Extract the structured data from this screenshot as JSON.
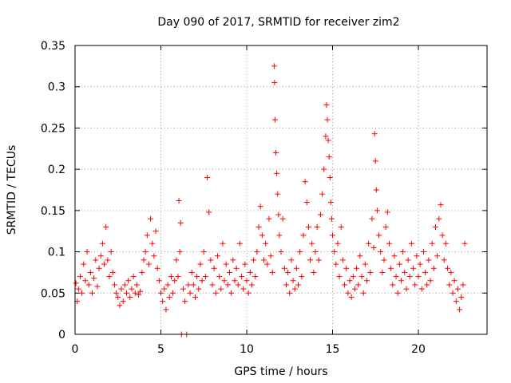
{
  "chart_data": {
    "type": "scatter",
    "title": "Day 090 of 2017, SRMTID for receiver zim2",
    "xlabel": "GPS time / hours",
    "ylabel": "SRMTID / TECUs",
    "xlim": [
      0,
      24
    ],
    "ylim": [
      0,
      0.35
    ],
    "xticks": [
      0,
      5,
      10,
      15,
      20
    ],
    "xtick_labels": [
      "0",
      "5",
      "10",
      "15",
      "20"
    ],
    "yticks": [
      0,
      0.05,
      0.1,
      0.15,
      0.2,
      0.25,
      0.3,
      0.35
    ],
    "ytick_labels": [
      "0",
      "0.05",
      "0.1",
      "0.15",
      "0.2",
      "0.25",
      "0.3",
      "0.35"
    ],
    "grid": true,
    "marker": "+",
    "color": "#ff0000",
    "series": [
      {
        "name": "SRMTID",
        "points": [
          [
            0.05,
            0.062
          ],
          [
            0.12,
            0.04
          ],
          [
            0.2,
            0.055
          ],
          [
            0.3,
            0.07
          ],
          [
            0.4,
            0.05
          ],
          [
            0.5,
            0.085
          ],
          [
            0.6,
            0.065
          ],
          [
            0.7,
            0.1
          ],
          [
            0.8,
            0.06
          ],
          [
            0.9,
            0.075
          ],
          [
            1.0,
            0.05
          ],
          [
            1.1,
            0.068
          ],
          [
            1.2,
            0.09
          ],
          [
            1.3,
            0.058
          ],
          [
            1.4,
            0.08
          ],
          [
            1.5,
            0.095
          ],
          [
            1.6,
            0.11
          ],
          [
            1.7,
            0.085
          ],
          [
            1.8,
            0.13
          ],
          [
            1.9,
            0.09
          ],
          [
            2.0,
            0.07
          ],
          [
            2.1,
            0.1
          ],
          [
            2.2,
            0.075
          ],
          [
            2.3,
            0.06
          ],
          [
            2.4,
            0.05
          ],
          [
            2.5,
            0.045
          ],
          [
            2.6,
            0.035
          ],
          [
            2.7,
            0.055
          ],
          [
            2.8,
            0.04
          ],
          [
            2.9,
            0.06
          ],
          [
            3.0,
            0.05
          ],
          [
            3.1,
            0.065
          ],
          [
            3.2,
            0.045
          ],
          [
            3.3,
            0.055
          ],
          [
            3.4,
            0.07
          ],
          [
            3.5,
            0.05
          ],
          [
            3.6,
            0.06
          ],
          [
            3.7,
            0.048
          ],
          [
            3.8,
            0.052
          ],
          [
            3.9,
            0.075
          ],
          [
            4.0,
            0.09
          ],
          [
            4.1,
            0.1
          ],
          [
            4.2,
            0.12
          ],
          [
            4.3,
            0.085
          ],
          [
            4.4,
            0.14
          ],
          [
            4.5,
            0.11
          ],
          [
            4.6,
            0.095
          ],
          [
            4.7,
            0.125
          ],
          [
            4.8,
            0.08
          ],
          [
            4.9,
            0.065
          ],
          [
            5.0,
            0.05
          ],
          [
            5.1,
            0.04
          ],
          [
            5.2,
            0.055
          ],
          [
            5.3,
            0.03
          ],
          [
            5.4,
            0.06
          ],
          [
            5.5,
            0.045
          ],
          [
            5.6,
            0.07
          ],
          [
            5.7,
            0.05
          ],
          [
            5.8,
            0.065
          ],
          [
            5.9,
            0.09
          ],
          [
            6.0,
            0.07
          ],
          [
            6.05,
            0.162
          ],
          [
            6.1,
            0.1
          ],
          [
            6.15,
            0.135
          ],
          [
            6.2,
            0.0
          ],
          [
            6.3,
            0.055
          ],
          [
            6.4,
            0.04
          ],
          [
            6.5,
            0.0
          ],
          [
            6.6,
            0.06
          ],
          [
            6.7,
            0.05
          ],
          [
            6.8,
            0.075
          ],
          [
            6.9,
            0.06
          ],
          [
            7.0,
            0.045
          ],
          [
            7.1,
            0.07
          ],
          [
            7.2,
            0.055
          ],
          [
            7.3,
            0.085
          ],
          [
            7.4,
            0.065
          ],
          [
            7.5,
            0.1
          ],
          [
            7.6,
            0.07
          ],
          [
            7.7,
            0.19
          ],
          [
            7.8,
            0.148
          ],
          [
            7.9,
            0.09
          ],
          [
            8.0,
            0.06
          ],
          [
            8.1,
            0.08
          ],
          [
            8.2,
            0.05
          ],
          [
            8.3,
            0.095
          ],
          [
            8.4,
            0.07
          ],
          [
            8.5,
            0.055
          ],
          [
            8.6,
            0.11
          ],
          [
            8.7,
            0.065
          ],
          [
            8.8,
            0.085
          ],
          [
            8.9,
            0.06
          ],
          [
            9.0,
            0.075
          ],
          [
            9.1,
            0.05
          ],
          [
            9.2,
            0.09
          ],
          [
            9.3,
            0.065
          ],
          [
            9.4,
            0.08
          ],
          [
            9.5,
            0.06
          ],
          [
            9.6,
            0.11
          ],
          [
            9.7,
            0.07
          ],
          [
            9.8,
            0.055
          ],
          [
            9.9,
            0.085
          ],
          [
            10.0,
            0.065
          ],
          [
            10.1,
            0.05
          ],
          [
            10.2,
            0.075
          ],
          [
            10.3,
            0.06
          ],
          [
            10.4,
            0.09
          ],
          [
            10.5,
            0.07
          ],
          [
            10.6,
            0.1
          ],
          [
            10.7,
            0.13
          ],
          [
            10.8,
            0.155
          ],
          [
            10.9,
            0.12
          ],
          [
            11.0,
            0.09
          ],
          [
            11.1,
            0.11
          ],
          [
            11.2,
            0.085
          ],
          [
            11.3,
            0.14
          ],
          [
            11.4,
            0.095
          ],
          [
            11.5,
            0.075
          ],
          [
            11.6,
            0.325
          ],
          [
            11.62,
            0.305
          ],
          [
            11.65,
            0.26
          ],
          [
            11.7,
            0.22
          ],
          [
            11.75,
            0.195
          ],
          [
            11.8,
            0.17
          ],
          [
            11.85,
            0.145
          ],
          [
            11.9,
            0.12
          ],
          [
            12.0,
            0.1
          ],
          [
            12.1,
            0.14
          ],
          [
            12.2,
            0.08
          ],
          [
            12.3,
            0.06
          ],
          [
            12.4,
            0.075
          ],
          [
            12.5,
            0.05
          ],
          [
            12.6,
            0.09
          ],
          [
            12.7,
            0.065
          ],
          [
            12.8,
            0.055
          ],
          [
            12.9,
            0.08
          ],
          [
            13.0,
            0.06
          ],
          [
            13.1,
            0.1
          ],
          [
            13.2,
            0.07
          ],
          [
            13.3,
            0.12
          ],
          [
            13.4,
            0.185
          ],
          [
            13.5,
            0.16
          ],
          [
            13.6,
            0.13
          ],
          [
            13.7,
            0.09
          ],
          [
            13.8,
            0.11
          ],
          [
            13.9,
            0.075
          ],
          [
            14.0,
            0.1
          ],
          [
            14.1,
            0.13
          ],
          [
            14.2,
            0.09
          ],
          [
            14.3,
            0.145
          ],
          [
            14.4,
            0.17
          ],
          [
            14.5,
            0.2
          ],
          [
            14.6,
            0.24
          ],
          [
            14.65,
            0.278
          ],
          [
            14.7,
            0.26
          ],
          [
            14.75,
            0.235
          ],
          [
            14.8,
            0.215
          ],
          [
            14.85,
            0.19
          ],
          [
            14.9,
            0.16
          ],
          [
            14.95,
            0.14
          ],
          [
            15.0,
            0.12
          ],
          [
            15.1,
            0.1
          ],
          [
            15.2,
            0.085
          ],
          [
            15.3,
            0.11
          ],
          [
            15.4,
            0.07
          ],
          [
            15.5,
            0.13
          ],
          [
            15.6,
            0.09
          ],
          [
            15.7,
            0.06
          ],
          [
            15.8,
            0.08
          ],
          [
            15.9,
            0.05
          ],
          [
            16.0,
            0.065
          ],
          [
            16.1,
            0.045
          ],
          [
            16.2,
            0.07
          ],
          [
            16.3,
            0.055
          ],
          [
            16.4,
            0.08
          ],
          [
            16.5,
            0.06
          ],
          [
            16.6,
            0.095
          ],
          [
            16.7,
            0.07
          ],
          [
            16.8,
            0.05
          ],
          [
            16.9,
            0.085
          ],
          [
            17.0,
            0.065
          ],
          [
            17.1,
            0.11
          ],
          [
            17.2,
            0.075
          ],
          [
            17.3,
            0.14
          ],
          [
            17.4,
            0.105
          ],
          [
            17.45,
            0.243
          ],
          [
            17.5,
            0.21
          ],
          [
            17.55,
            0.175
          ],
          [
            17.6,
            0.15
          ],
          [
            17.7,
            0.12
          ],
          [
            17.8,
            0.1
          ],
          [
            17.9,
            0.075
          ],
          [
            18.0,
            0.09
          ],
          [
            18.1,
            0.13
          ],
          [
            18.2,
            0.148
          ],
          [
            18.3,
            0.11
          ],
          [
            18.4,
            0.08
          ],
          [
            18.5,
            0.06
          ],
          [
            18.6,
            0.095
          ],
          [
            18.7,
            0.07
          ],
          [
            18.8,
            0.05
          ],
          [
            18.9,
            0.085
          ],
          [
            19.0,
            0.065
          ],
          [
            19.1,
            0.1
          ],
          [
            19.2,
            0.075
          ],
          [
            19.3,
            0.055
          ],
          [
            19.4,
            0.09
          ],
          [
            19.5,
            0.07
          ],
          [
            19.6,
            0.11
          ],
          [
            19.7,
            0.08
          ],
          [
            19.8,
            0.06
          ],
          [
            19.9,
            0.095
          ],
          [
            20.0,
            0.07
          ],
          [
            20.1,
            0.085
          ],
          [
            20.2,
            0.055
          ],
          [
            20.3,
            0.1
          ],
          [
            20.4,
            0.075
          ],
          [
            20.5,
            0.06
          ],
          [
            20.6,
            0.09
          ],
          [
            20.7,
            0.065
          ],
          [
            20.8,
            0.11
          ],
          [
            20.9,
            0.08
          ],
          [
            21.0,
            0.13
          ],
          [
            21.1,
            0.095
          ],
          [
            21.2,
            0.14
          ],
          [
            21.3,
            0.157
          ],
          [
            21.4,
            0.12
          ],
          [
            21.5,
            0.09
          ],
          [
            21.6,
            0.11
          ],
          [
            21.7,
            0.08
          ],
          [
            21.8,
            0.06
          ],
          [
            21.9,
            0.075
          ],
          [
            22.0,
            0.05
          ],
          [
            22.1,
            0.065
          ],
          [
            22.2,
            0.04
          ],
          [
            22.3,
            0.055
          ],
          [
            22.4,
            0.03
          ],
          [
            22.5,
            0.045
          ],
          [
            22.6,
            0.06
          ],
          [
            22.7,
            0.11
          ]
        ]
      }
    ]
  }
}
